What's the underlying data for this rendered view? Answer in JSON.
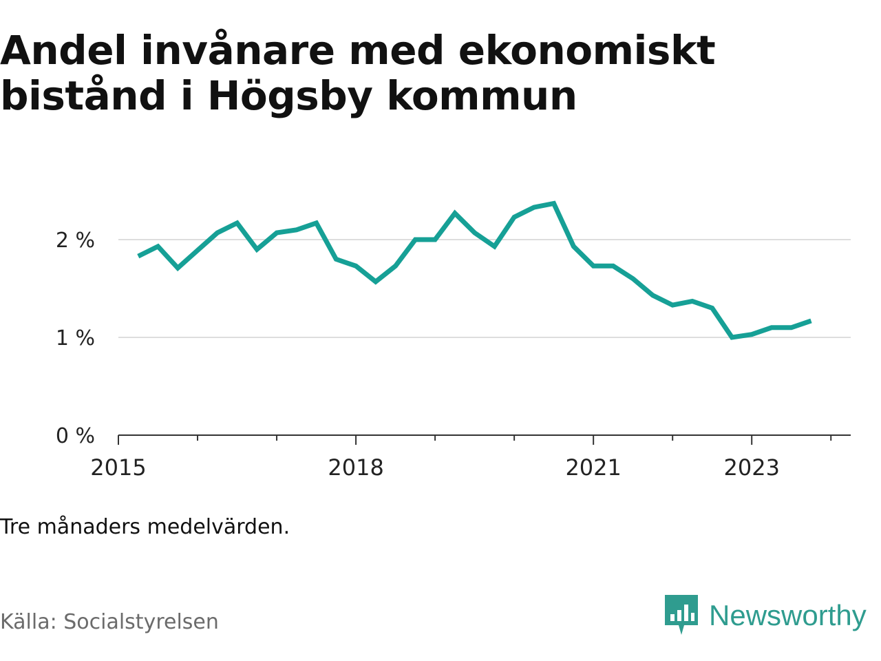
{
  "header": {
    "title": "Andel invånare med ekonomiskt bistånd i Högsby kommun"
  },
  "note": "Tre månaders medelvärden.",
  "source": "Källa: Socialstyrelsen",
  "brand": {
    "name": "Newsworthy",
    "icon": "newsworthy-logo-icon",
    "color": "#2f9c8f"
  },
  "chart_data": {
    "type": "line",
    "title": "Andel invånare med ekonomiskt bistånd i Högsby kommun",
    "xlabel": "",
    "ylabel": "",
    "x": [
      "2015-04",
      "2015-07",
      "2015-10",
      "2016-01",
      "2016-04",
      "2016-07",
      "2016-10",
      "2017-01",
      "2017-04",
      "2017-07",
      "2017-10",
      "2018-01",
      "2018-04",
      "2018-07",
      "2018-10",
      "2019-01",
      "2019-04",
      "2019-07",
      "2019-10",
      "2020-01",
      "2020-04",
      "2020-07",
      "2020-10",
      "2021-01",
      "2021-04",
      "2021-07",
      "2021-10",
      "2022-01",
      "2022-04",
      "2022-07",
      "2022-10",
      "2023-01",
      "2023-04",
      "2023-07",
      "2023-10"
    ],
    "series": [
      {
        "values": [
          1.83,
          1.93,
          1.71,
          1.89,
          2.07,
          2.17,
          1.9,
          2.07,
          2.1,
          2.17,
          1.8,
          1.73,
          1.57,
          1.73,
          2.0,
          2.0,
          2.27,
          2.07,
          1.93,
          2.23,
          2.33,
          2.37,
          1.93,
          1.73,
          1.73,
          1.6,
          1.43,
          1.33,
          1.37,
          1.3,
          1.0,
          1.03,
          1.1,
          1.1,
          1.17
        ]
      }
    ],
    "xticks": [
      "2015",
      "2018",
      "2021",
      "2023"
    ],
    "yticks": [
      0,
      1,
      2
    ],
    "ytick_labels": [
      "0 %",
      "1 %",
      "2 %"
    ],
    "ylim": [
      0,
      2.5
    ],
    "xlim": [
      "2015-01",
      "2024-04"
    ],
    "grid": "horizontal",
    "line_color": "#16a096",
    "grid_color": "#dddddd",
    "axis_color": "#333333"
  }
}
